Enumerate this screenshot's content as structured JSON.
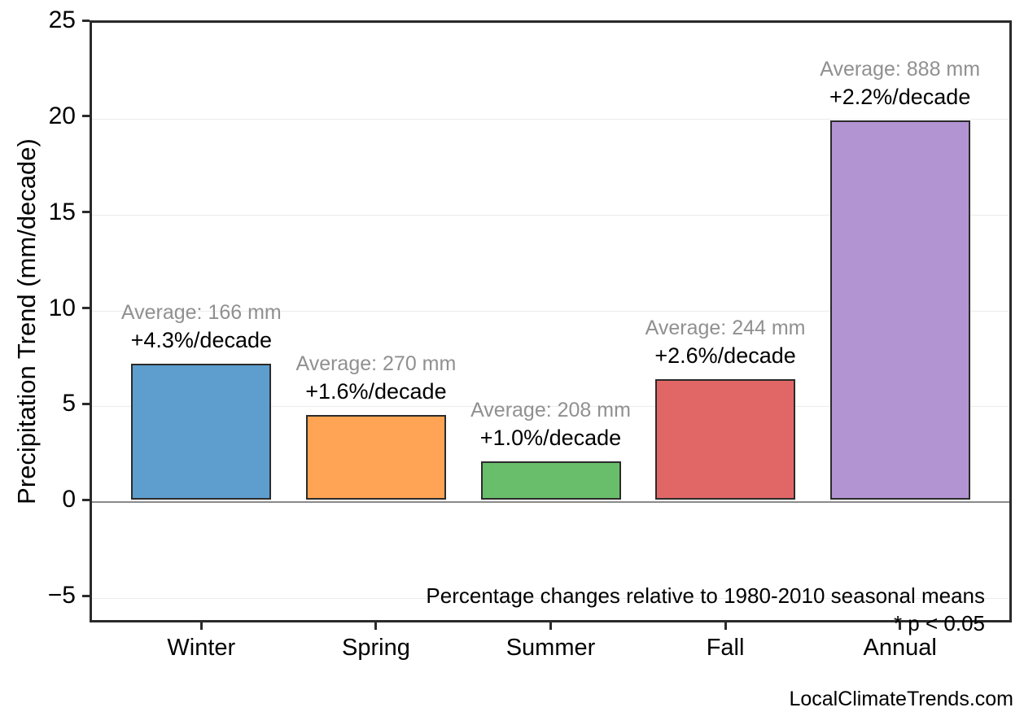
{
  "chart_data": {
    "type": "bar",
    "categories": [
      "Winter",
      "Spring",
      "Summer",
      "Fall",
      "Annual"
    ],
    "values": [
      7.1,
      4.4,
      2.0,
      6.3,
      19.8
    ],
    "bar_colors": [
      "#5E9ECE",
      "#FFA454",
      "#69BE6C",
      "#E16766",
      "#B394D3"
    ],
    "bar_edge_color": "#2B2B2B",
    "annotations": [
      {
        "average": "Average: 166 mm",
        "trend": "+4.3%/decade"
      },
      {
        "average": "Average: 270 mm",
        "trend": "+1.6%/decade"
      },
      {
        "average": "Average: 208 mm",
        "trend": "+1.0%/decade"
      },
      {
        "average": "Average: 244 mm",
        "trend": "+2.6%/decade"
      },
      {
        "average": "Average: 888 mm",
        "trend": "+2.2%/decade"
      }
    ],
    "title": "",
    "xlabel": "",
    "ylabel": "Precipitation Trend (mm/decade)",
    "yticks": [
      {
        "value": 25,
        "label": "25"
      },
      {
        "value": 20,
        "label": "20"
      },
      {
        "value": 15,
        "label": "15"
      },
      {
        "value": 10,
        "label": "10"
      },
      {
        "value": 5,
        "label": "5"
      },
      {
        "value": 0,
        "label": "0"
      },
      {
        "value": -5,
        "label": "−5"
      }
    ],
    "ylim": [
      -6.4,
      25.0
    ],
    "grid": "horizontal",
    "grid_color": "#ECECEC",
    "zero_line_color": "#8A8A8A",
    "axis_color": "#2B2B2B",
    "annotation_average_color": "#909090",
    "annotation_trend_color": "#000000",
    "note_line1": "Percentage changes relative to 1980-2010 seasonal means",
    "note_line2": "* p < 0.05",
    "watermark": "LocalClimateTrends.com"
  }
}
